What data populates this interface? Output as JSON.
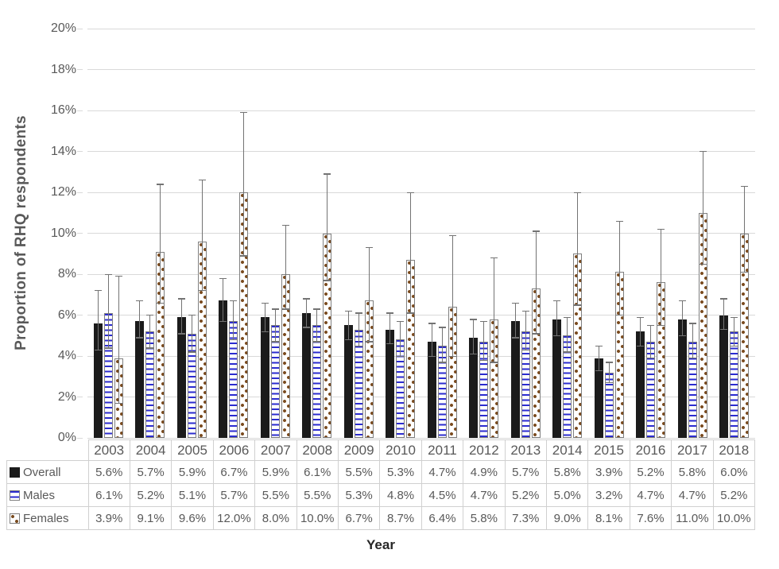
{
  "colors": {
    "overall_fill": "#1b1b1b",
    "males_stripe": "#2b2bcf",
    "females_dot": "#7a4a1e",
    "pattern_border": "#7f7f7f",
    "pattern_bg": "#ffffff",
    "error_bar": "#737373",
    "gridline": "#d9d9d9",
    "axis_text": "#595959",
    "table_border": "#d0d0d0",
    "xlabel_text": "#262626"
  },
  "chart_data": {
    "type": "bar",
    "title": "",
    "xlabel": "Year",
    "ylabel": "Proportion of RHQ respondents",
    "ylim": [
      0,
      20
    ],
    "ytick_step": 2,
    "ytick_suffix": "%",
    "grid": true,
    "legend_position": "data-table-left",
    "error_bars": true,
    "categories": [
      "2003",
      "2004",
      "2005",
      "2006",
      "2007",
      "2008",
      "2009",
      "2010",
      "2011",
      "2012",
      "2013",
      "2014",
      "2015",
      "2016",
      "2017",
      "2018"
    ],
    "series": [
      {
        "name": "Overall",
        "pattern": "solid",
        "values": [
          5.6,
          5.7,
          5.9,
          6.7,
          5.9,
          6.1,
          5.5,
          5.3,
          4.7,
          4.9,
          5.7,
          5.8,
          3.9,
          5.2,
          5.8,
          6.0
        ],
        "ci_upper": [
          7.2,
          6.7,
          6.8,
          7.8,
          6.6,
          6.8,
          6.2,
          6.1,
          5.6,
          5.8,
          6.6,
          6.7,
          4.5,
          5.9,
          6.7,
          6.8
        ],
        "ci_lower": [
          4.3,
          4.9,
          5.1,
          5.7,
          5.2,
          5.4,
          4.8,
          4.6,
          4.0,
          4.1,
          4.9,
          5.0,
          3.3,
          4.5,
          5.0,
          5.3
        ]
      },
      {
        "name": "Males",
        "pattern": "hstripes",
        "values": [
          6.1,
          5.2,
          5.1,
          5.7,
          5.5,
          5.5,
          5.3,
          4.8,
          4.5,
          4.7,
          5.2,
          5.0,
          3.2,
          4.7,
          4.7,
          5.2
        ],
        "ci_upper": [
          8.0,
          6.0,
          6.0,
          6.7,
          6.3,
          6.3,
          6.1,
          5.7,
          5.4,
          5.7,
          6.2,
          5.9,
          3.7,
          5.5,
          5.6,
          5.9
        ],
        "ci_lower": [
          4.4,
          4.4,
          4.2,
          4.8,
          4.7,
          4.7,
          4.5,
          4.0,
          3.7,
          3.8,
          4.3,
          4.2,
          2.7,
          3.9,
          3.9,
          4.5
        ]
      },
      {
        "name": "Females",
        "pattern": "dots",
        "values": [
          3.9,
          9.1,
          9.6,
          12.0,
          8.0,
          10.0,
          6.7,
          8.7,
          6.4,
          5.8,
          7.3,
          9.0,
          8.1,
          7.6,
          11.0,
          10.0
        ],
        "ci_upper": [
          7.9,
          12.4,
          12.6,
          15.9,
          10.4,
          12.9,
          9.3,
          12.0,
          9.9,
          8.8,
          10.1,
          12.0,
          10.6,
          10.2,
          14.0,
          12.3
        ],
        "ci_lower": [
          1.7,
          6.6,
          7.2,
          8.9,
          6.3,
          7.7,
          4.7,
          6.1,
          4.0,
          3.7,
          5.1,
          6.5,
          6.0,
          5.5,
          8.5,
          8.1
        ]
      }
    ]
  }
}
